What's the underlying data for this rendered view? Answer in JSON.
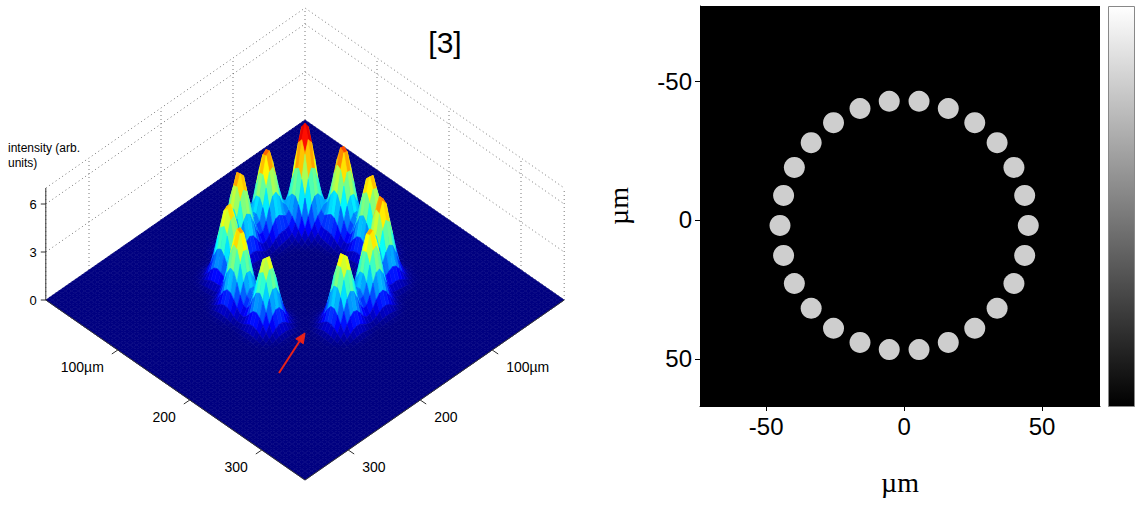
{
  "chart_data": [
    {
      "type": "surface",
      "title": "[3]",
      "zlabel": "intensity (arb. units)",
      "xlim": [
        0,
        360
      ],
      "ylim": [
        0,
        360
      ],
      "zlim": [
        0,
        7
      ],
      "xticks": [
        {
          "value": 100,
          "label": "100µm"
        },
        200,
        300
      ],
      "yticks": [
        {
          "value": 100,
          "label": "100µm"
        },
        200,
        300
      ],
      "zticks": [
        0,
        3,
        6
      ],
      "grid": true,
      "peaks": {
        "x": [
          232,
          179,
          141,
          107,
          88,
          88,
          107,
          141,
          179,
          213,
          232
        ],
        "y": [
          179,
          232,
          232,
          213,
          179,
          141,
          107,
          88,
          88,
          107,
          141
        ],
        "values": [
          4.6,
          4.4,
          5.0,
          4.8,
          5.2,
          5.4,
          6.6,
          5.6,
          5.0,
          5.3,
          4.9
        ]
      },
      "arrow_at": [
        213,
        213
      ]
    },
    {
      "type": "scatter",
      "xlabel": "µm",
      "ylabel": "µm",
      "xlim": [
        -74,
        71
      ],
      "ylim": [
        67,
        -77
      ],
      "xticks": [
        -50,
        0,
        50
      ],
      "yticks": [
        -50,
        0,
        50
      ],
      "grid": false,
      "color": "#d9d9d9",
      "x": [
        45,
        43.7,
        39.8,
        33.7,
        25.6,
        16.0,
        5.4,
        -5.4,
        -16.0,
        -25.6,
        -33.7,
        -39.8,
        -43.7,
        -45,
        -43.7,
        -39.8,
        -33.7,
        -25.6,
        -16.0,
        -5.4,
        5.4,
        16.0,
        25.6,
        33.7,
        39.8,
        43.7
      ],
      "values": [
        2,
        12.8,
        22.9,
        31.8,
        39.0,
        44.1,
        46.7,
        46.7,
        44.1,
        39.0,
        31.8,
        22.9,
        12.8,
        2,
        -8.8,
        -18.9,
        -27.8,
        -35.0,
        -40.1,
        -42.7,
        -42.7,
        -40.1,
        -35.0,
        -27.8,
        -18.9,
        -8.8
      ]
    }
  ]
}
